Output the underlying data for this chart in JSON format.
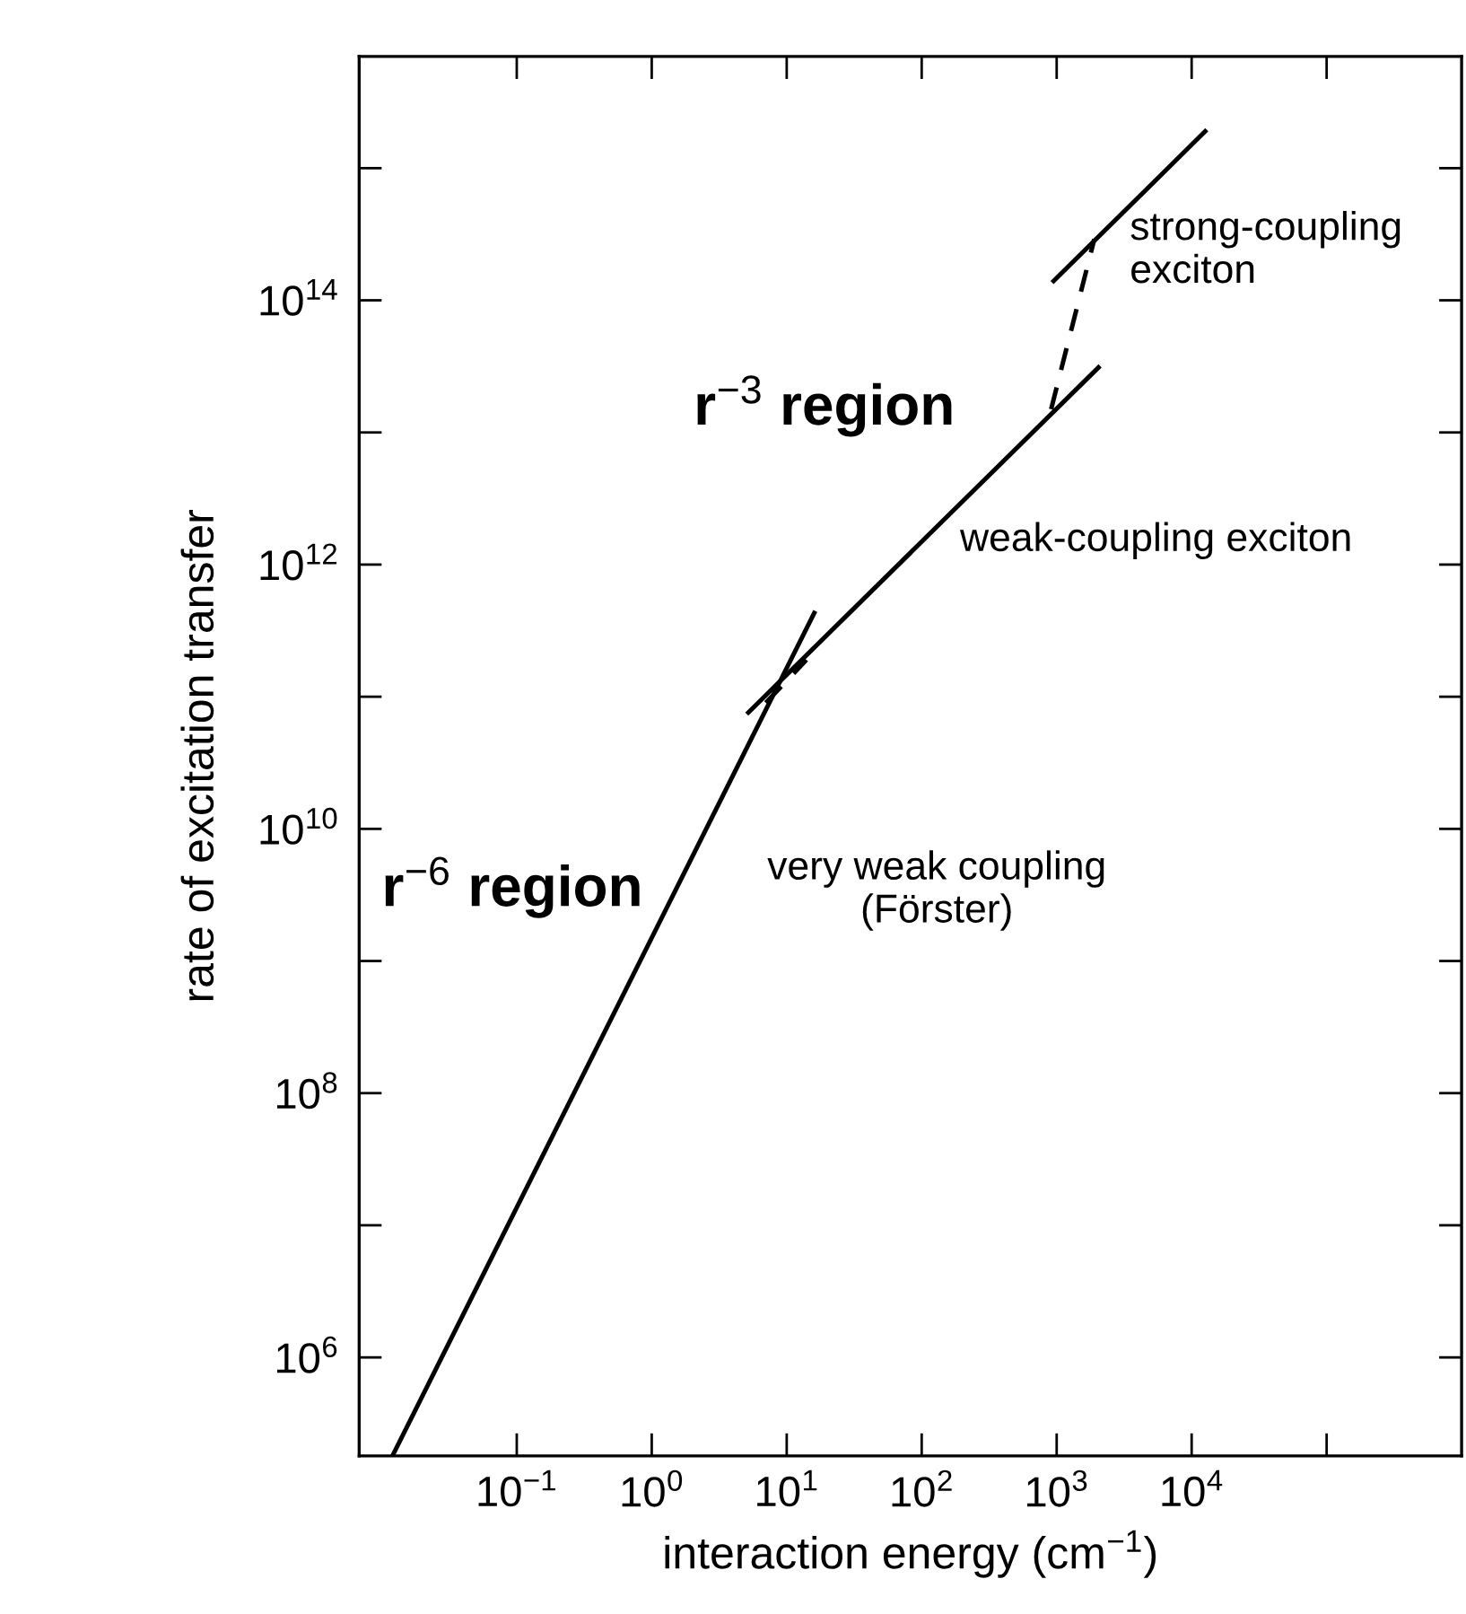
{
  "chart_data": {
    "type": "line",
    "xlabel": "interaction energy (cm$^{−1}$)",
    "ylabel": "rate of excitation transfer",
    "log": "xy",
    "grid": false,
    "legend": false,
    "marker": "none",
    "xlim": [
      0.0068,
      1000000
    ],
    "ylim": [
      180000,
      7000000000000000.0
    ],
    "xticks": [
      {
        "value": 0.1,
        "label": "10$^{−1}$"
      },
      {
        "value": 1,
        "label": "10$^{0}$"
      },
      {
        "value": 10,
        "label": "10$^{1}$"
      },
      {
        "value": 100,
        "label": "10$^{2}$"
      },
      {
        "value": 1000,
        "label": "10$^{3}$"
      },
      {
        "value": 10000,
        "label": "10$^{4}$"
      },
      {
        "value": 100000,
        "label": null
      }
    ],
    "yticks": [
      {
        "value": 1000000.0,
        "label": "10$^{6}$"
      },
      {
        "value": 10000000.0,
        "label": null
      },
      {
        "value": 100000000.0,
        "label": "10$^{8}$"
      },
      {
        "value": 1000000000.0,
        "label": null
      },
      {
        "value": 10000000000.0,
        "label": "10$^{10}$"
      },
      {
        "value": 100000000000.0,
        "label": null
      },
      {
        "value": 1000000000000.0,
        "label": "10$^{12}$"
      },
      {
        "value": 10000000000000.0,
        "label": null
      },
      {
        "value": 100000000000000.0,
        "label": "10$^{14}$"
      },
      {
        "value": 1000000000000000.0,
        "label": null
      }
    ],
    "series": [
      {
        "color": "#000000",
        "line_style": "solid",
        "x": [
          0.012,
          16
        ],
        "values": [
          180000,
          430000000000.0
        ]
      },
      {
        "color": "#000000",
        "line_style": "dashed",
        "x": [
          7,
          14
        ],
        "values": [
          90000000000.0,
          190000000000.0
        ]
      },
      {
        "color": "#000000",
        "line_style": "solid",
        "x": [
          5.2,
          2040
        ],
        "values": [
          76000000000.0,
          31000000000000.0
        ]
      },
      {
        "color": "#000000",
        "line_style": "dashed",
        "x": [
          910,
          1900
        ],
        "values": [
          15000000000000.0,
          290000000000000.0
        ]
      },
      {
        "color": "#000000",
        "line_style": "solid",
        "x": [
          950,
          12600
        ],
        "values": [
          140000000000000.0,
          1900000000000000.0
        ]
      }
    ],
    "annotations": [
      "r$^{−3}$ region",
      "r$^{−6}$ region",
      "weak-coupling exciton",
      "strong-coupling\nexciton",
      "very weak coupling\n(Förster)"
    ]
  }
}
